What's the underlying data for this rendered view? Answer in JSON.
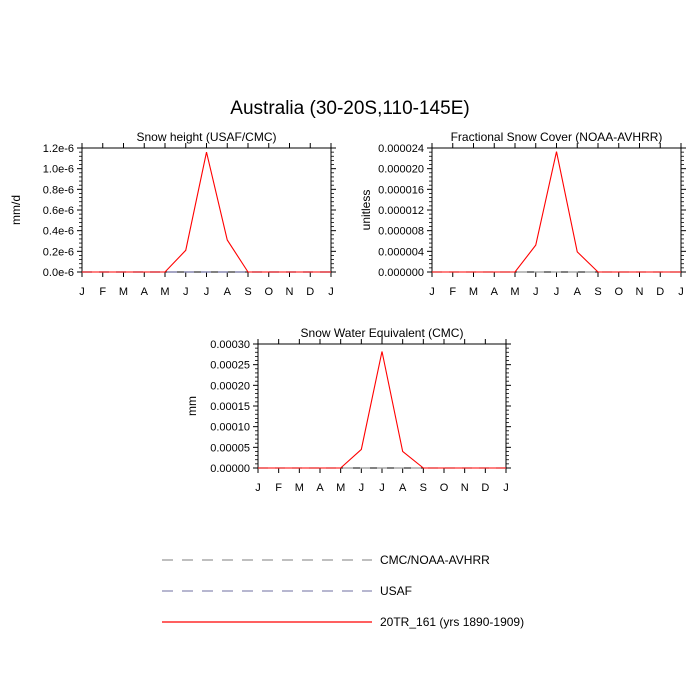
{
  "figure": {
    "title": "Australia (30-20S,110-145E)"
  },
  "legend": [
    {
      "label": "CMC/NOAA-AVHRR",
      "color": "#999999",
      "dash": "dashed"
    },
    {
      "label": "USAF",
      "color": "#8c8cb4",
      "dash": "dashed"
    },
    {
      "label": "20TR_161 (yrs 1890-1909)",
      "color": "#ff0000",
      "dash": "solid"
    }
  ],
  "chart_data": [
    {
      "type": "line",
      "title": "Snow height (USAF/CMC)",
      "xlabel": "",
      "ylabel": "mm/d",
      "categories": [
        "J",
        "F",
        "M",
        "A",
        "M",
        "J",
        "J",
        "A",
        "S",
        "O",
        "N",
        "D",
        "J"
      ],
      "ylim": [
        0,
        1.2e-06
      ],
      "yticks": [
        0,
        2e-07,
        4e-07,
        6e-07,
        8e-07,
        1e-06,
        1.2e-06
      ],
      "yticklabels": [
        "0.0e-6",
        "0.2e-6",
        "0.4e-6",
        "0.6e-6",
        "0.8e-6",
        "1.0e-6",
        "1.2e-6"
      ],
      "grid": false,
      "series": [
        {
          "name": "CMC/NOAA-AVHRR",
          "values": [
            0,
            0,
            0,
            0,
            0,
            0,
            0,
            0,
            0,
            0,
            0,
            0,
            0
          ]
        },
        {
          "name": "USAF",
          "values": [
            0,
            0,
            0,
            0,
            0,
            0,
            0,
            0,
            0,
            0,
            0,
            0,
            0
          ]
        },
        {
          "name": "20TR_161 (yrs 1890-1909)",
          "values": [
            0,
            0,
            0,
            0,
            0,
            2.1e-07,
            1.16e-06,
            3.1e-07,
            0,
            0,
            0,
            0,
            0
          ]
        }
      ]
    },
    {
      "type": "line",
      "title": "Fractional Snow Cover (NOAA-AVHRR)",
      "xlabel": "",
      "ylabel": "unitless",
      "categories": [
        "J",
        "F",
        "M",
        "A",
        "M",
        "J",
        "J",
        "A",
        "S",
        "O",
        "N",
        "D",
        "J"
      ],
      "ylim": [
        0,
        2.4e-05
      ],
      "yticks": [
        0,
        4e-06,
        8e-06,
        1.2e-05,
        1.6e-05,
        2e-05,
        2.4e-05
      ],
      "yticklabels": [
        "0.000000",
        "0.000004",
        "0.000008",
        "0.000012",
        "0.000016",
        "0.000020",
        "0.000024"
      ],
      "grid": false,
      "series": [
        {
          "name": "CMC/NOAA-AVHRR",
          "values": [
            0,
            0,
            0,
            0,
            0,
            0,
            0,
            0,
            0,
            0,
            0,
            0,
            0
          ]
        },
        {
          "name": "20TR_161 (yrs 1890-1909)",
          "values": [
            0,
            0,
            0,
            0,
            0,
            5.2e-06,
            2.33e-05,
            3.9e-06,
            0,
            0,
            0,
            0,
            0
          ]
        }
      ]
    },
    {
      "type": "line",
      "title": "Snow Water Equivalent (CMC)",
      "xlabel": "",
      "ylabel": "mm",
      "categories": [
        "J",
        "F",
        "M",
        "A",
        "M",
        "J",
        "J",
        "A",
        "S",
        "O",
        "N",
        "D",
        "J"
      ],
      "ylim": [
        0,
        0.0003
      ],
      "yticks": [
        0,
        5e-05,
        0.0001,
        0.00015,
        0.0002,
        0.00025,
        0.0003
      ],
      "yticklabels": [
        "0.00000",
        "0.00005",
        "0.00010",
        "0.00015",
        "0.00020",
        "0.00025",
        "0.00030"
      ],
      "grid": false,
      "series": [
        {
          "name": "CMC/NOAA-AVHRR",
          "values": [
            0,
            0,
            0,
            0,
            0,
            0,
            0,
            0,
            0,
            0,
            0,
            0,
            0
          ]
        },
        {
          "name": "20TR_161 (yrs 1890-1909)",
          "values": [
            0,
            0,
            0,
            0,
            0,
            4.5e-05,
            0.000282,
            4e-05,
            0,
            0,
            0,
            0,
            0
          ]
        }
      ]
    }
  ]
}
